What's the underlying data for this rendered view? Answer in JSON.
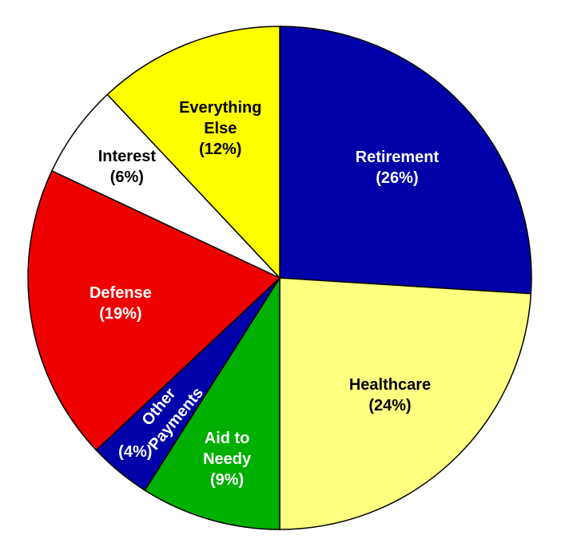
{
  "chart_data": {
    "type": "pie",
    "categories": [
      "Retirement",
      "Healthcare",
      "Aid to Needy",
      "Other Payments",
      "Defense",
      "Interest",
      "Everything Else"
    ],
    "values": [
      26,
      24,
      9,
      4,
      19,
      6,
      12
    ],
    "value_labels": [
      "(26%)",
      "(24%)",
      "(9%)",
      "(4%)",
      "(19%)",
      "(6%)",
      "(12%)"
    ],
    "colors": [
      "#0000a8",
      "#ffff80",
      "#00b000",
      "#0000a8",
      "#ee0000",
      "#ffffff",
      "#ffff00"
    ]
  }
}
